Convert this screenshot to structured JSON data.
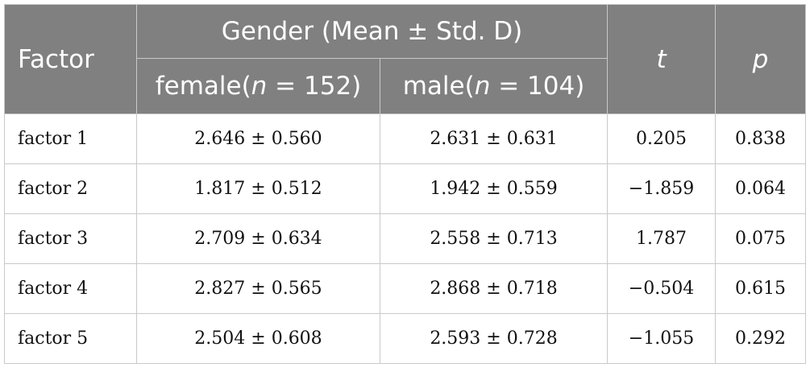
{
  "header": {
    "factor_label": "Factor",
    "gender_label": "Gender (Mean ± Std. D)",
    "t_label": "t",
    "p_label": "p",
    "female_label": "female(",
    "male_label": "male(",
    "n_symbol": "n",
    "female_n": " = 152)",
    "male_n": " = 104)"
  },
  "rows": [
    {
      "factor": "factor 1",
      "female": "2.646 ± 0.560",
      "male": "2.631 ± 0.631",
      "t": "0.205",
      "p": "0.838"
    },
    {
      "factor": "factor 2",
      "female": "1.817 ± 0.512",
      "male": "1.942 ± 0.559",
      "t": "−1.859",
      "p": "0.064"
    },
    {
      "factor": "factor 3",
      "female": "2.709 ± 0.634",
      "male": "2.558 ± 0.713",
      "t": "1.787",
      "p": "0.075"
    },
    {
      "factor": "factor 4",
      "female": "2.827 ± 0.565",
      "male": "2.868 ± 0.718",
      "t": "−0.504",
      "p": "0.615"
    },
    {
      "factor": "factor 5",
      "female": "2.504 ± 0.608",
      "male": "2.593 ± 0.728",
      "t": "−1.055",
      "p": "0.292"
    }
  ]
}
